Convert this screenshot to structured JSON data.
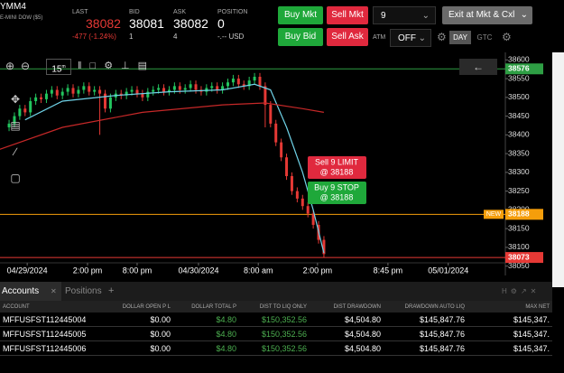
{
  "header": {
    "symbol": "YMM4",
    "description": "E-MINI DOW ($5)",
    "last_label": "LAST",
    "last": "38082",
    "change": "-477 (-1.24%)",
    "bid_label": "BID",
    "bid": "38081",
    "bid_size": "1",
    "ask_label": "ASK",
    "ask": "38082",
    "ask_size": "4",
    "position_label": "POSITION",
    "position": "0",
    "position_value": "-.-- USD"
  },
  "order_panel": {
    "buy_mkt": "Buy Mkt",
    "sell_mkt": "Sell Mkt",
    "quantity": "9",
    "exit": "Exit at Mkt & Cxl",
    "buy_bid": "Buy Bid",
    "sell_ask": "Sell Ask",
    "atm_label": "ATM",
    "atm": "OFF",
    "day": "DAY",
    "gtc": "GTC"
  },
  "toolbar": {
    "interval": "15",
    "unit": "m"
  },
  "chart_data": {
    "type": "candlestick",
    "candles": {
      "open": [
        38420,
        38430,
        38450,
        38470,
        38460,
        38490,
        38500,
        38495,
        38510,
        38520,
        38505,
        38515,
        38525,
        38510,
        38520,
        38530,
        38515,
        38520,
        38510,
        38470,
        38500,
        38510,
        38505,
        38515,
        38520,
        38510,
        38500,
        38515,
        38520,
        38525,
        38515,
        38520,
        38530,
        38520,
        38525,
        38535,
        38520,
        38515,
        38525,
        38530,
        38520,
        38530,
        38540,
        38550,
        38535,
        38530,
        38545,
        38555,
        38530,
        38480,
        38430,
        38380,
        38340,
        38290,
        38250,
        38230,
        38210,
        38190,
        38160,
        38120
      ],
      "high": [
        38440,
        38460,
        38480,
        38480,
        38500,
        38510,
        38510,
        38520,
        38530,
        38530,
        38525,
        38535,
        38535,
        38530,
        38540,
        38540,
        38530,
        38530,
        38520,
        38510,
        38520,
        38520,
        38525,
        38530,
        38530,
        38520,
        38525,
        38530,
        38535,
        38535,
        38530,
        38540,
        38540,
        38535,
        38545,
        38545,
        38530,
        38535,
        38540,
        38540,
        38540,
        38550,
        38560,
        38560,
        38545,
        38555,
        38565,
        38565,
        38540,
        38490,
        38440,
        38390,
        38350,
        38300,
        38260,
        38240,
        38220,
        38200,
        38170,
        38130
      ],
      "low": [
        38410,
        38420,
        38440,
        38450,
        38450,
        38480,
        38485,
        38485,
        38500,
        38495,
        38495,
        38505,
        38500,
        38500,
        38510,
        38505,
        38505,
        38400,
        38460,
        38460,
        38490,
        38495,
        38495,
        38505,
        38500,
        38490,
        38490,
        38505,
        38510,
        38505,
        38505,
        38510,
        38510,
        38510,
        38515,
        38510,
        38505,
        38505,
        38515,
        38510,
        38510,
        38520,
        38530,
        38525,
        38520,
        38520,
        38535,
        38520,
        38420,
        38420,
        38370,
        38330,
        38280,
        38240,
        38220,
        38200,
        38180,
        38150,
        38110,
        38073
      ],
      "close": [
        38430,
        38450,
        38470,
        38460,
        38490,
        38500,
        38495,
        38510,
        38520,
        38505,
        38515,
        38525,
        38510,
        38520,
        38530,
        38515,
        38520,
        38510,
        38470,
        38500,
        38510,
        38505,
        38515,
        38520,
        38510,
        38500,
        38515,
        38520,
        38525,
        38515,
        38520,
        38530,
        38520,
        38525,
        38535,
        38520,
        38515,
        38525,
        38530,
        38520,
        38530,
        38540,
        38550,
        38535,
        38530,
        38545,
        38555,
        38530,
        38480,
        38430,
        38380,
        38340,
        38290,
        38250,
        38230,
        38210,
        38190,
        38160,
        38120,
        38082
      ]
    },
    "up_color": "#22c55e",
    "down_color": "#e53935",
    "series": [
      {
        "color": "#6fd3e8",
        "x": [
          3,
          10,
          20,
          30,
          40,
          46,
          49,
          52,
          55,
          57,
          59
        ],
        "values": [
          38440,
          38490,
          38505,
          38515,
          38520,
          38535,
          38520,
          38420,
          38300,
          38200,
          38085
        ]
      },
      {
        "color": "#c62828",
        "x": [
          -2,
          10,
          25,
          40,
          48,
          55,
          59
        ],
        "values": [
          38360,
          38420,
          38460,
          38480,
          38485,
          38470,
          38460
        ]
      }
    ],
    "xlim": [
      -1.7,
      93
    ],
    "ylim": [
      38025,
      38620
    ],
    "xticks": [
      {
        "value": 3.4,
        "label": "04/29/2024"
      },
      {
        "value": 14.7,
        "label": "2:00 pm"
      },
      {
        "value": 24,
        "label": "8:00 pm"
      },
      {
        "value": 35.5,
        "label": "04/30/2024"
      },
      {
        "value": 46.7,
        "label": "8:00 am"
      },
      {
        "value": 57.8,
        "label": "2:00 pm"
      },
      {
        "value": 71,
        "label": "8:45 pm"
      },
      {
        "value": 82.3,
        "label": "05/01/2024"
      }
    ],
    "yticks": [
      38050,
      38100,
      38150,
      38200,
      38250,
      38300,
      38350,
      38400,
      38450,
      38500,
      38550,
      38600
    ],
    "price_lines": [
      {
        "value": 38576,
        "color": "#2e9e44"
      },
      {
        "value": 38188,
        "color": "#f59e0b",
        "tag": "NEW"
      },
      {
        "value": 38073,
        "color": "#e53935"
      }
    ],
    "orders": [
      {
        "label": "Sell 9 LIMIT",
        "price": "@ 38188",
        "color": "#e0293e"
      },
      {
        "label": "Buy 9 STOP",
        "price": "@ 38188",
        "color": "#1fa83a"
      }
    ]
  },
  "accounts": {
    "tabs": [
      "Accounts",
      "Positions"
    ],
    "columns": [
      "ACCOUNT",
      "DOLLAR OPEN P L",
      "DOLLAR TOTAL P",
      "DIST TO LIQ ONLY",
      "DIST DRAWDOWN",
      "DRAWDOWN AUTO LIQ",
      "MAX NET"
    ],
    "rows": [
      [
        "MFFUSFST112445004",
        "$0.00",
        "$4.80",
        "$150,352.56",
        "$4,504.80",
        "$145,847.76",
        "$145,347."
      ],
      [
        "MFFUSFST112445005",
        "$0.00",
        "$4.80",
        "$150,352.56",
        "$4,504.80",
        "$145,847.76",
        "$145,347."
      ],
      [
        "MFFUSFST112445006",
        "$0.00",
        "$4.80",
        "$150,352.56",
        "$4,504.80",
        "$145,847.76",
        "$145,347."
      ]
    ]
  }
}
